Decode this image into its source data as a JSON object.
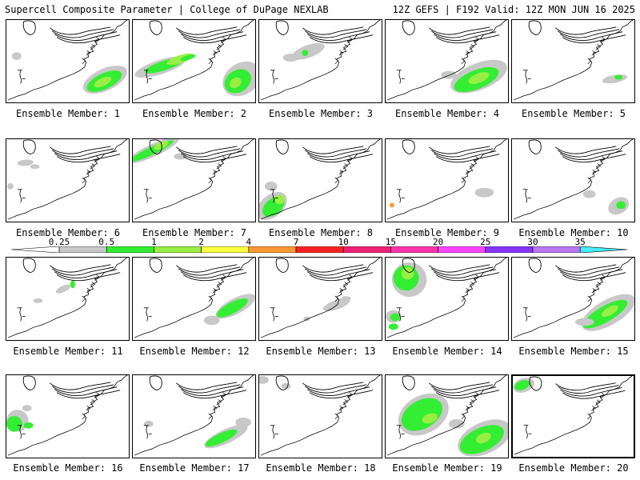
{
  "header": {
    "title_left": "Supercell Composite Parameter | College of DuPage NEXLAB",
    "title_right": "12Z GEFS | F192 Valid: 12Z MON JUN 16 2025"
  },
  "colorbar": {
    "labels": [
      "0.25",
      "0.5",
      "1",
      "2",
      "4",
      "7",
      "10",
      "15",
      "20",
      "25",
      "30",
      "35"
    ],
    "colors": [
      "#c8c8c8",
      "#33ee33",
      "#99ee44",
      "#ffff44",
      "#ff9933",
      "#ff2222",
      "#ee2277",
      "#ff33aa",
      "#ff44ff",
      "#8833ff",
      "#bb77ee",
      "#44eeff"
    ]
  },
  "members": [
    {
      "label": "Ensemble Member: 1"
    },
    {
      "label": "Ensemble Member: 2"
    },
    {
      "label": "Ensemble Member: 3"
    },
    {
      "label": "Ensemble Member: 4"
    },
    {
      "label": "Ensemble Member: 5"
    },
    {
      "label": "Ensemble Member: 6"
    },
    {
      "label": "Ensemble Member: 7"
    },
    {
      "label": "Ensemble Member: 8"
    },
    {
      "label": "Ensemble Member: 9"
    },
    {
      "label": "Ensemble Member: 10"
    },
    {
      "label": "Ensemble Member: 11"
    },
    {
      "label": "Ensemble Member: 12"
    },
    {
      "label": "Ensemble Member: 13"
    },
    {
      "label": "Ensemble Member: 14"
    },
    {
      "label": "Ensemble Member: 15"
    },
    {
      "label": "Ensemble Member: 16"
    },
    {
      "label": "Ensemble Member: 17"
    },
    {
      "label": "Ensemble Member: 18"
    },
    {
      "label": "Ensemble Member: 19"
    },
    {
      "label": "Ensemble Member: 20"
    }
  ],
  "selected_member_index": 19
}
